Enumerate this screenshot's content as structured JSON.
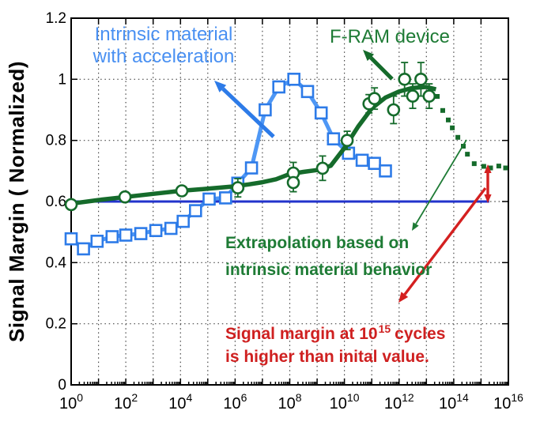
{
  "labels": {
    "intrinsic": {
      "line1": "Intrinsic material",
      "line2": "with acceleration",
      "color": "#4990F2"
    },
    "fram": {
      "text": "F-RAM device",
      "color": "#1E7B35"
    },
    "extrapolation": {
      "line1": "Extrapolation based on",
      "line2": "intrinsic material behavior",
      "color": "#1E7B35"
    },
    "signal_margin": {
      "line1_pre": "Signal margin at 10",
      "line1_sup": "15",
      "line1_post": "cycles",
      "line2": "is higher than inital value.",
      "color": "#CF2020"
    }
  },
  "chart_data": {
    "type": "line",
    "title": "",
    "xlabel": "",
    "ylabel": "Signal Margin ( Normalized)",
    "x_scale": "log10",
    "x_range_exponents": [
      0,
      16
    ],
    "x_tick_exponents": [
      0,
      2,
      4,
      6,
      8,
      10,
      12,
      14,
      16
    ],
    "x_tick_base": "10",
    "ylim": [
      0,
      1.2
    ],
    "y_tick_values": [
      1.2,
      1.0,
      0.8,
      0.6,
      0.4,
      0.2,
      0
    ],
    "y_tick_labels": [
      "1.2",
      "1",
      "0.8",
      "0.6",
      "0.4",
      "0.2",
      "0"
    ],
    "grid": {
      "style": "dotted",
      "x_exponents": [
        1,
        2,
        3,
        4,
        5,
        6,
        7,
        8,
        9,
        10,
        11,
        12,
        13,
        14,
        15
      ],
      "y_values": [
        0.2,
        0.4,
        0.6,
        0.8,
        1.0
      ]
    },
    "reference_line": {
      "y": 0.6,
      "from_exponent": 0,
      "to_exponent": 15.3,
      "color": "#2233CC",
      "meaning": "initial value"
    },
    "series": [
      {
        "name": "Intrinsic material with acceleration",
        "marker": "square",
        "line_color": "#4E97F5",
        "marker_color": "#2D7BE8",
        "points": [
          [
            0.0,
            0.478
          ],
          [
            0.45,
            0.445
          ],
          [
            0.95,
            0.47
          ],
          [
            1.5,
            0.485
          ],
          [
            2.0,
            0.49
          ],
          [
            2.55,
            0.495
          ],
          [
            3.1,
            0.505
          ],
          [
            3.65,
            0.512
          ],
          [
            4.1,
            0.535
          ],
          [
            4.55,
            0.57
          ],
          [
            5.05,
            0.608
          ],
          [
            5.65,
            0.612
          ],
          [
            6.1,
            0.66
          ],
          [
            6.6,
            0.71
          ],
          [
            7.1,
            0.9
          ],
          [
            7.6,
            0.975
          ],
          [
            8.15,
            1.0
          ],
          [
            8.65,
            0.96
          ],
          [
            9.15,
            0.89
          ],
          [
            9.6,
            0.805
          ],
          [
            10.15,
            0.758
          ],
          [
            10.65,
            0.735
          ],
          [
            11.1,
            0.725
          ],
          [
            11.5,
            0.7
          ]
        ]
      },
      {
        "name": "F-RAM device",
        "marker": "circle",
        "color": "#156B2B",
        "line_points": [
          [
            0,
            0.593
          ],
          [
            1,
            0.605
          ],
          [
            2,
            0.615
          ],
          [
            3,
            0.625
          ],
          [
            4,
            0.635
          ],
          [
            5,
            0.642
          ],
          [
            6,
            0.65
          ],
          [
            6.5,
            0.656
          ],
          [
            7,
            0.663
          ],
          [
            7.5,
            0.673
          ],
          [
            8,
            0.69
          ],
          [
            8.5,
            0.697
          ],
          [
            9,
            0.703
          ],
          [
            9.5,
            0.717
          ],
          [
            10,
            0.775
          ],
          [
            10.5,
            0.845
          ],
          [
            11,
            0.905
          ],
          [
            11.5,
            0.94
          ],
          [
            12,
            0.96
          ],
          [
            12.5,
            0.972
          ],
          [
            13,
            0.975
          ],
          [
            13.35,
            0.967
          ]
        ],
        "marker_points_with_error": [
          [
            0,
            0.59,
            0.015
          ],
          [
            1.97,
            0.615,
            0.015
          ],
          [
            4.05,
            0.635,
            0.015
          ],
          [
            6.1,
            0.645,
            0.03
          ],
          [
            8.13,
            0.693,
            0.035
          ],
          [
            8.13,
            0.662,
            0.03
          ],
          [
            9.2,
            0.709,
            0.04
          ],
          [
            10.1,
            0.8,
            0.03
          ],
          [
            10.9,
            0.92,
            0.03
          ],
          [
            11.1,
            0.937,
            0.035
          ],
          [
            11.8,
            0.9,
            0.045
          ],
          [
            12.2,
            1.0,
            0.055
          ],
          [
            12.5,
            0.945,
            0.04
          ],
          [
            12.8,
            1.0,
            0.055
          ],
          [
            13.1,
            0.945,
            0.04
          ]
        ]
      },
      {
        "name": "Extrapolation based on intrinsic material behavior",
        "style": "dotted",
        "color": "#156B2B",
        "points": [
          [
            13.4,
            0.944
          ],
          [
            13.6,
            0.898
          ],
          [
            13.8,
            0.867
          ],
          [
            13.95,
            0.841
          ],
          [
            14.15,
            0.81
          ],
          [
            14.35,
            0.781
          ],
          [
            14.5,
            0.755
          ],
          [
            14.75,
            0.724
          ],
          [
            15.1,
            0.715
          ],
          [
            15.35,
            0.71
          ],
          [
            15.65,
            0.716
          ],
          [
            15.9,
            0.71
          ]
        ]
      }
    ]
  }
}
